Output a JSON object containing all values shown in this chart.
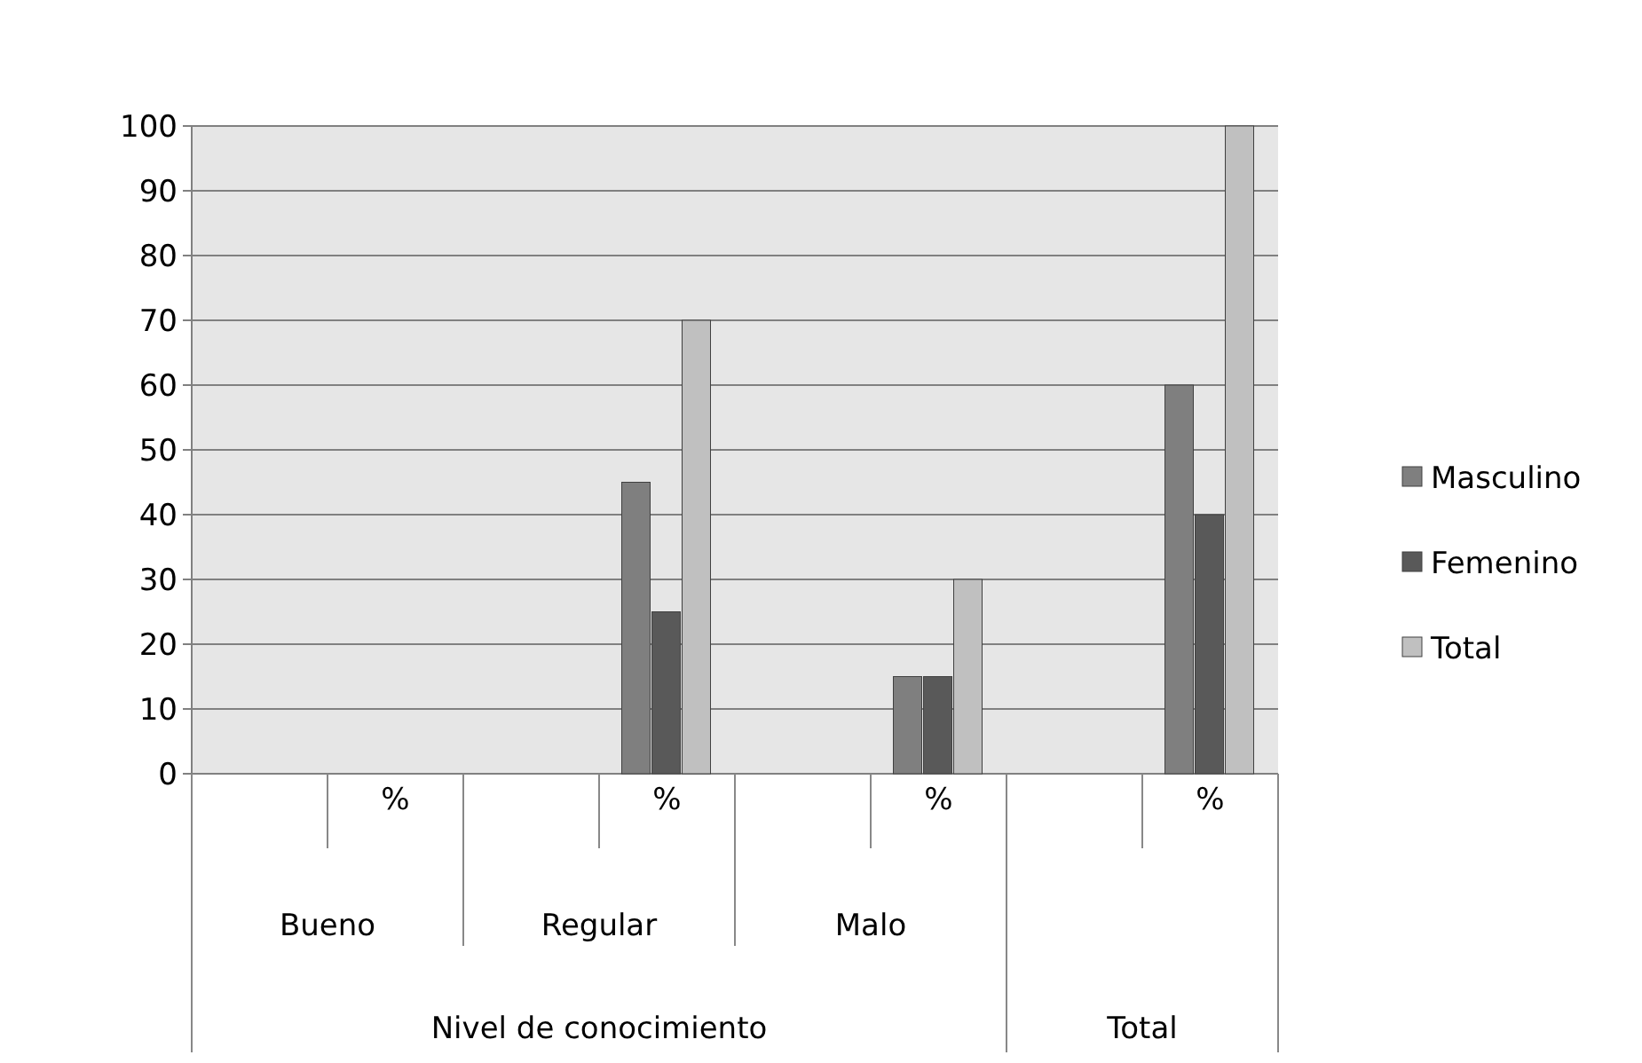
{
  "chart_data": {
    "type": "bar",
    "categories": [
      null,
      "%",
      null,
      "%",
      null,
      "%",
      null,
      "%"
    ],
    "series": [
      {
        "name": "Masculino",
        "color": "#7f7f7f",
        "values": [
          null,
          0,
          null,
          45,
          null,
          15,
          null,
          60
        ]
      },
      {
        "name": "Femenino",
        "color": "#595959",
        "values": [
          null,
          0,
          null,
          25,
          null,
          15,
          null,
          40
        ]
      },
      {
        "name": "Total",
        "color": "#c0c0c0",
        "values": [
          null,
          0,
          null,
          70,
          null,
          30,
          null,
          100
        ]
      }
    ],
    "annotations": [
      "Bueno",
      "Regular",
      "Malo",
      "Nivel de conocimiento",
      "Total"
    ],
    "ylim": [
      0,
      100
    ],
    "yticks": [
      0,
      10,
      20,
      30,
      40,
      50,
      60,
      70,
      80,
      90,
      100
    ],
    "grid": "y",
    "legend": "right"
  }
}
